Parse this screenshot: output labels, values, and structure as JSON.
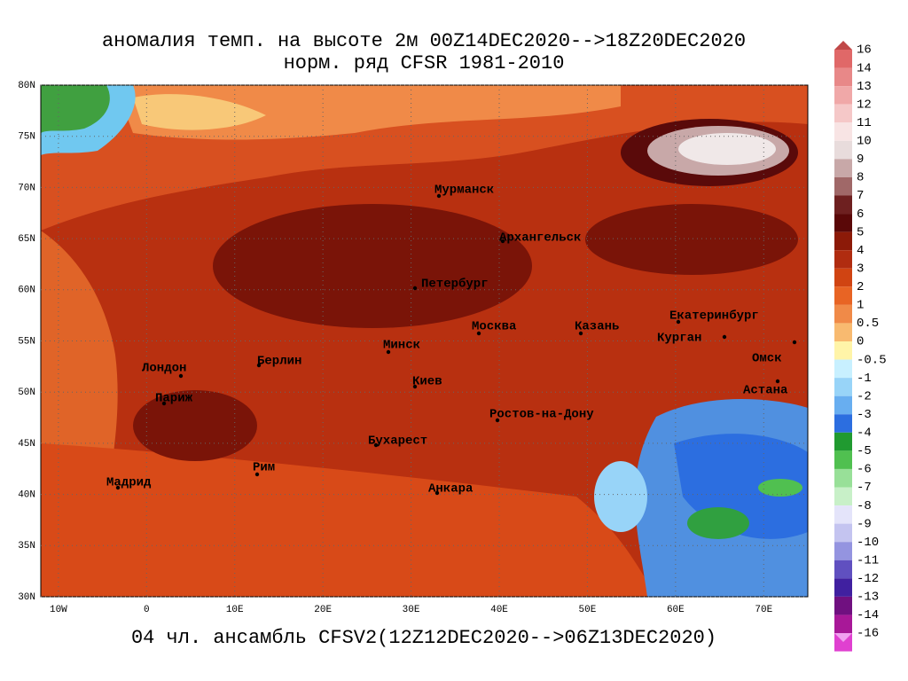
{
  "title": [
    "аномалия темп. на высоте 2м 00Z14DEC2020-->18Z20DEC2020",
    "норм. ряд CFSR 1981-2010"
  ],
  "footer": "04 чл. ансамбль CFSV2(12Z12DEC2020-->06Z13DEC2020)",
  "map": {
    "latlim": [
      30,
      80
    ],
    "lonlim": [
      -12,
      75
    ],
    "lat_ticks": [
      {
        "value": 80,
        "label": "80N"
      },
      {
        "value": 75,
        "label": "75N"
      },
      {
        "value": 70,
        "label": "70N"
      },
      {
        "value": 65,
        "label": "65N"
      },
      {
        "value": 60,
        "label": "60N"
      },
      {
        "value": 55,
        "label": "55N"
      },
      {
        "value": 50,
        "label": "50N"
      },
      {
        "value": 45,
        "label": "45N"
      },
      {
        "value": 40,
        "label": "40N"
      },
      {
        "value": 35,
        "label": "35N"
      },
      {
        "value": 30,
        "label": "30N"
      }
    ],
    "lon_ticks": [
      {
        "value": -10,
        "label": "10W"
      },
      0,
      {
        "value": 10,
        "label": "10E"
      },
      {
        "value": 20,
        "label": "20E"
      },
      {
        "value": 30,
        "label": "30E"
      },
      {
        "value": 40,
        "label": "40E"
      },
      {
        "value": 50,
        "label": "50E"
      },
      {
        "value": 60,
        "label": "60E"
      },
      {
        "value": 70,
        "label": "70E"
      }
    ],
    "cities": [
      "Мурманск",
      "Архангельск",
      "Петербург",
      "Москва",
      "Казань",
      "Екатеринбург",
      "Курган",
      "Омск",
      "Астана",
      "Минск",
      "Берлин",
      "Лондон",
      "Париж",
      "Киев",
      "Ростов-на-Дону",
      "Бухарест",
      "Рим",
      "Мадрид",
      "Анкара"
    ]
  },
  "colorbar": {
    "levels": [
      16,
      14,
      13,
      12,
      11,
      10,
      9,
      8,
      7,
      6,
      5,
      4,
      3,
      2,
      1,
      0.5,
      0,
      -0.5,
      -1,
      -2,
      -3,
      -4,
      -5,
      -6,
      -7,
      -8,
      -9,
      -10,
      -11,
      -12,
      -13,
      -14,
      -16
    ],
    "colors": [
      "#c04848",
      "#e06868",
      "#e88888",
      "#f0a8a8",
      "#f5c8c8",
      "#f8e4e4",
      "#e8dcdc",
      "#c8a8a8",
      "#a06868",
      "#6e2020",
      "#5a0808",
      "#8c1a08",
      "#b02c10",
      "#d04412",
      "#e86424",
      "#f08a48",
      "#f8ba70",
      "#fff4a8",
      "#c8f0ff",
      "#98d4f8",
      "#68aef0",
      "#2c6ee0",
      "#209a30",
      "#50c050",
      "#98e098",
      "#c8f0c8",
      "#e4e4fa",
      "#c4c4f0",
      "#9494e0",
      "#6050c0",
      "#4020a0",
      "#701080",
      "#a81898",
      "#e040d0",
      "#f0a0f0"
    ]
  }
}
